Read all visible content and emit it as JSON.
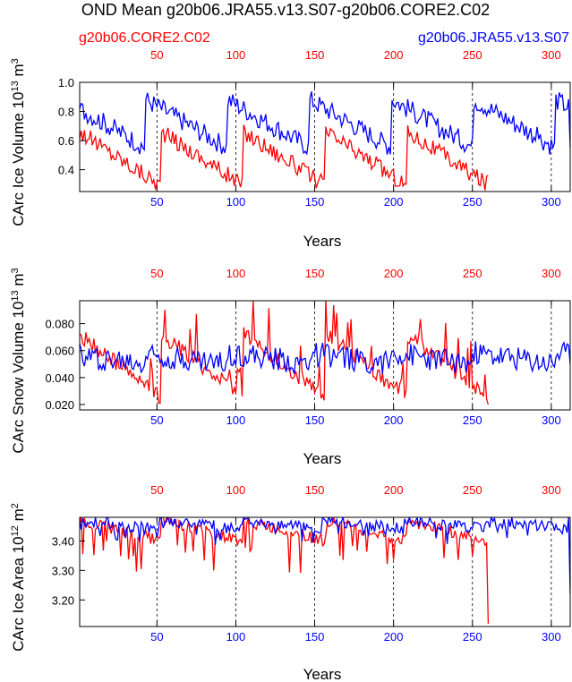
{
  "title": "OND Mean g20b06.JRA55.v13.S07-g20b06.CORE2.C02",
  "legend": {
    "left": "g20b06.CORE2.C02",
    "right": "g20b06.JRA55.v13.S07"
  },
  "colors": {
    "core2": "#ff0000",
    "jra55": "#0000ff",
    "axis": "#000000"
  },
  "chart_data": [
    {
      "type": "line",
      "ylabel": "CArc Ice Volume 10^13 m^3",
      "ylabel_main": "CArc Ice Volume 10",
      "ylabel_exp": "13",
      "ylabel_unit": " m",
      "ylabel_unit_exp": "3",
      "xlabel": "Years",
      "ylim": [
        0.25,
        1.0
      ],
      "yticks": [
        0.4,
        0.6,
        0.8,
        1.0
      ],
      "yticklabels": [
        "0.4",
        "0.6",
        "0.8",
        "1.0"
      ],
      "bottom_xlim": [
        1,
        312
      ],
      "top_xlim": [
        1,
        312
      ],
      "bottom_xticks": [
        50,
        100,
        150,
        200,
        250,
        300
      ],
      "top_xticks": [
        50,
        100,
        150,
        200,
        250,
        300
      ],
      "dashed_x": [
        50,
        100,
        150,
        200,
        250,
        300
      ],
      "series": [
        {
          "name": "g20b06.CORE2.C02",
          "color": "#ff0000",
          "length": 260,
          "cycle": 52,
          "start": 0.66,
          "end": 0.29,
          "noise": 0.06,
          "spike": 0.0,
          "phase": 0,
          "last_wrap": 0.36
        },
        {
          "name": "g20b06.JRA55.v13.S07",
          "color": "#0000ff",
          "length": 312,
          "cycle": 52,
          "start": 0.88,
          "end": 0.55,
          "noise": 0.07,
          "spike": 0.0,
          "phase": 10,
          "last_wrap": 0.55
        }
      ]
    },
    {
      "type": "line",
      "ylabel": "CArc Snow Volume 10^13 m^3",
      "ylabel_main": "CArc Snow Volume 10",
      "ylabel_exp": "13",
      "ylabel_unit": " m",
      "ylabel_unit_exp": "3",
      "xlabel": "Years",
      "ylim": [
        0.016,
        0.097
      ],
      "yticks": [
        0.02,
        0.04,
        0.06,
        0.08
      ],
      "yticklabels": [
        "0.020",
        "0.040",
        "0.060",
        "0.080"
      ],
      "bottom_xlim": [
        1,
        312
      ],
      "top_xlim": [
        1,
        312
      ],
      "bottom_xticks": [
        50,
        100,
        150,
        200,
        250,
        300
      ],
      "top_xticks": [
        50,
        100,
        150,
        200,
        250,
        300
      ],
      "dashed_x": [
        50,
        100,
        150,
        200,
        250,
        300
      ],
      "series": [
        {
          "name": "g20b06.CORE2.C02",
          "color": "#ff0000",
          "length": 260,
          "cycle": 52,
          "start": 0.072,
          "end": 0.025,
          "noise": 0.006,
          "spike": 0.03,
          "phase": 0,
          "last_wrap": 0.02
        },
        {
          "name": "g20b06.JRA55.v13.S07",
          "color": "#0000ff",
          "length": 312,
          "cycle": 52,
          "start": 0.058,
          "end": 0.05,
          "noise": 0.009,
          "spike": 0.0,
          "phase": 10,
          "last_wrap": 0.05
        }
      ]
    },
    {
      "type": "line",
      "ylabel": "CArc Ice Area 10^12 m^2",
      "ylabel_main": "CArc Ice Area 10",
      "ylabel_exp": "12",
      "ylabel_unit": " m",
      "ylabel_unit_exp": "2",
      "xlabel": "Years",
      "ylim": [
        3.11,
        3.48
      ],
      "yticks": [
        3.2,
        3.3,
        3.4
      ],
      "yticklabels": [
        "3.20",
        "3.30",
        "3.40"
      ],
      "bottom_xlim": [
        1,
        312
      ],
      "top_xlim": [
        1,
        312
      ],
      "bottom_xticks": [
        50,
        100,
        150,
        200,
        250,
        300
      ],
      "top_xticks": [
        50,
        100,
        150,
        200,
        250,
        300
      ],
      "dashed_x": [
        50,
        100,
        150,
        200,
        250,
        300
      ],
      "series": [
        {
          "name": "g20b06.CORE2.C02",
          "color": "#ff0000",
          "length": 260,
          "cycle": 52,
          "start": 3.47,
          "end": 3.4,
          "noise": 0.02,
          "spike": -0.12,
          "phase": 0,
          "last_wrap": 3.12
        },
        {
          "name": "g20b06.JRA55.v13.S07",
          "color": "#0000ff",
          "length": 312,
          "cycle": 52,
          "start": 3.47,
          "end": 3.44,
          "noise": 0.02,
          "spike": -0.05,
          "phase": 2,
          "last_wrap": 3.22
        }
      ]
    }
  ]
}
